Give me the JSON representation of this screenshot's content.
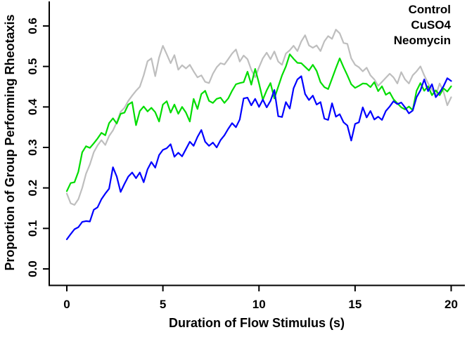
{
  "figure": {
    "background_color": "#ffffff",
    "axis_color": "#000000"
  },
  "chart_data": {
    "type": "line",
    "title": "",
    "xlabel": "Duration of Flow Stimulus (s)",
    "ylabel": "Proportion of Group Performing Rheotaxis",
    "xlim": [
      0,
      20.8
    ],
    "ylim": [
      0,
      0.62
    ],
    "grid": false,
    "legend_position": "top-right",
    "x_ticks": {
      "values": [
        0,
        5,
        10,
        15,
        20
      ],
      "labels": [
        "0",
        "5",
        "10",
        "15",
        "20"
      ]
    },
    "y_ticks": {
      "values": [
        0.0,
        0.1,
        0.2,
        0.3,
        0.4,
        0.5,
        0.6
      ],
      "labels": [
        "0.0",
        "0.1",
        "0.2",
        "0.3",
        "0.4",
        "0.5",
        "0.6"
      ]
    },
    "x_start": 0,
    "x_step": 0.2,
    "series": [
      {
        "name": "Control",
        "color": "#BEBEBE",
        "values": [
          0.186,
          0.162,
          0.158,
          0.172,
          0.2,
          0.235,
          0.258,
          0.288,
          0.305,
          0.318,
          0.306,
          0.328,
          0.342,
          0.362,
          0.388,
          0.398,
          0.415,
          0.428,
          0.44,
          0.45,
          0.478,
          0.513,
          0.52,
          0.476,
          0.522,
          0.551,
          0.53,
          0.508,
          0.528,
          0.492,
          0.503,
          0.495,
          0.504,
          0.488,
          0.473,
          0.478,
          0.462,
          0.459,
          0.482,
          0.498,
          0.508,
          0.505,
          0.518,
          0.532,
          0.542,
          0.512,
          0.527,
          0.518,
          0.492,
          0.473,
          0.498,
          0.52,
          0.534,
          0.518,
          0.537,
          0.512,
          0.504,
          0.532,
          0.54,
          0.551,
          0.538,
          0.562,
          0.577,
          0.552,
          0.546,
          0.552,
          0.538,
          0.562,
          0.575,
          0.568,
          0.591,
          0.582,
          0.558,
          0.556,
          0.52,
          0.504,
          0.498,
          0.488,
          0.497,
          0.478,
          0.468,
          0.452,
          0.462,
          0.472,
          0.482,
          0.473,
          0.458,
          0.486,
          0.468,
          0.458,
          0.478,
          0.488,
          0.5,
          0.478,
          0.458,
          0.443,
          0.428,
          0.458,
          0.438,
          0.404,
          0.424
        ]
      },
      {
        "name": "CuSO4",
        "color": "#0000FF",
        "values": [
          0.073,
          0.086,
          0.098,
          0.103,
          0.116,
          0.118,
          0.117,
          0.146,
          0.152,
          0.172,
          0.186,
          0.198,
          0.251,
          0.228,
          0.19,
          0.21,
          0.228,
          0.238,
          0.224,
          0.238,
          0.214,
          0.246,
          0.264,
          0.25,
          0.281,
          0.294,
          0.298,
          0.308,
          0.277,
          0.287,
          0.278,
          0.296,
          0.314,
          0.304,
          0.326,
          0.343,
          0.314,
          0.304,
          0.312,
          0.3,
          0.318,
          0.33,
          0.346,
          0.36,
          0.35,
          0.369,
          0.421,
          0.423,
          0.404,
          0.42,
          0.4,
          0.418,
          0.399,
          0.415,
          0.442,
          0.377,
          0.375,
          0.412,
          0.396,
          0.446,
          0.468,
          0.476,
          0.432,
          0.417,
          0.428,
          0.406,
          0.412,
          0.371,
          0.368,
          0.409,
          0.376,
          0.382,
          0.362,
          0.354,
          0.317,
          0.358,
          0.362,
          0.399,
          0.374,
          0.39,
          0.369,
          0.376,
          0.368,
          0.39,
          0.401,
          0.414,
          0.407,
          0.411,
          0.399,
          0.384,
          0.391,
          0.424,
          0.441,
          0.468,
          0.439,
          0.456,
          0.424,
          0.436,
          0.451,
          0.471,
          0.464
        ]
      },
      {
        "name": "Neomycin",
        "color": "#00DD00",
        "values": [
          0.192,
          0.212,
          0.214,
          0.24,
          0.288,
          0.303,
          0.299,
          0.31,
          0.322,
          0.336,
          0.33,
          0.36,
          0.372,
          0.359,
          0.383,
          0.386,
          0.406,
          0.412,
          0.355,
          0.39,
          0.401,
          0.389,
          0.398,
          0.387,
          0.364,
          0.406,
          0.414,
          0.386,
          0.406,
          0.383,
          0.4,
          0.386,
          0.364,
          0.42,
          0.395,
          0.432,
          0.44,
          0.415,
          0.41,
          0.42,
          0.423,
          0.41,
          0.421,
          0.44,
          0.456,
          0.459,
          0.461,
          0.487,
          0.455,
          0.494,
          0.458,
          0.418,
          0.441,
          0.459,
          0.421,
          0.45,
          0.478,
          0.5,
          0.53,
          0.519,
          0.509,
          0.508,
          0.499,
          0.49,
          0.504,
          0.489,
          0.461,
          0.449,
          0.444,
          0.47,
          0.496,
          0.52,
          0.498,
          0.478,
          0.456,
          0.447,
          0.452,
          0.458,
          0.457,
          0.449,
          0.461,
          0.439,
          0.451,
          0.43,
          0.436,
          0.419,
          0.409,
          0.399,
          0.394,
          0.401,
          0.392,
          0.44,
          0.459,
          0.44,
          0.451,
          0.429,
          0.441,
          0.429,
          0.446,
          0.438,
          0.451
        ]
      }
    ]
  }
}
